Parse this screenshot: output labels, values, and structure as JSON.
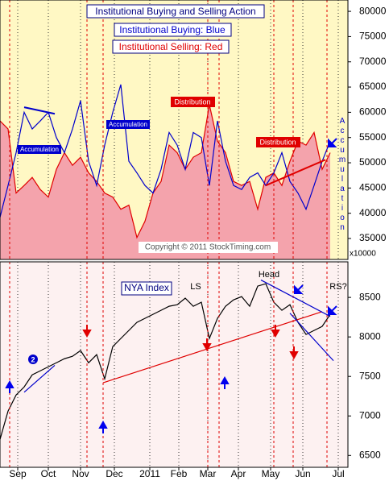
{
  "chart_data": [
    {
      "type": "area-line",
      "title": "Institutional Buying and Selling Action",
      "subtitle": "Institutional Buying: Blue",
      "subtitle2": "Institutional Selling: Red",
      "annotations": [
        "Accumulation",
        "Accumulation",
        "Distribution",
        "Distribution",
        "Accumulation"
      ],
      "copyright": "Copyright © 2011 StockTiming.com",
      "unit_label": "x10000",
      "x": [
        0,
        5,
        10,
        15,
        20,
        25,
        30,
        35,
        40,
        45,
        50,
        55,
        60,
        65,
        70,
        75,
        80,
        85,
        90,
        95,
        100,
        105,
        110,
        115,
        120,
        125,
        130,
        135,
        140,
        145,
        150,
        155,
        160,
        165,
        170,
        175,
        180,
        185,
        190,
        195,
        200,
        205
      ],
      "series": [
        {
          "name": "Institutional Selling",
          "color": "#e00000",
          "fill": "#f4a3ac",
          "values": [
            58300,
            56700,
            44000,
            45500,
            47100,
            44700,
            43200,
            48700,
            52000,
            49500,
            51100,
            48000,
            46300,
            44000,
            43200,
            40800,
            41600,
            35200,
            38400,
            44000,
            46300,
            53500,
            52000,
            48700,
            51100,
            52000,
            61500,
            54300,
            52000,
            46300,
            45500,
            46300,
            40800,
            47100,
            48000,
            45500,
            50300,
            54300,
            53500,
            56000,
            48700,
            52000
          ]
        },
        {
          "name": "Institutional Buying",
          "color": "#0000cc",
          "values": [
            39200,
            45500,
            52000,
            60000,
            56700,
            58300,
            60000,
            55000,
            52000,
            56700,
            62300,
            50300,
            45500,
            53500,
            60000,
            65500,
            50300,
            48000,
            45500,
            44000,
            48700,
            56000,
            53500,
            48700,
            56000,
            55000,
            45500,
            58300,
            50300,
            45500,
            44700,
            47100,
            48000,
            45500,
            48000,
            52000,
            46300,
            44000,
            40800,
            45500,
            50300,
            54300
          ]
        }
      ],
      "trendlines": [
        {
          "color": "#0000cc",
          "x": [
            15,
            34
          ],
          "y": [
            61000,
            59700
          ]
        },
        {
          "color": "#e00000",
          "x": [
            165,
            202
          ],
          "y": [
            45500,
            50600
          ]
        }
      ],
      "xlim": [
        0,
        216
      ],
      "ylim": [
        30850,
        82250
      ],
      "yticks": [
        35000,
        40000,
        45000,
        50000,
        55000,
        60000,
        65000,
        70000,
        75000,
        80000
      ],
      "markers": [
        6,
        54,
        64,
        129,
        136,
        170,
        182,
        203
      ]
    },
    {
      "type": "line",
      "title": "NYA Index",
      "annotations": [
        "LS",
        "Head",
        "RS?",
        "2"
      ],
      "x": [
        0,
        5,
        10,
        15,
        20,
        25,
        30,
        35,
        40,
        45,
        50,
        55,
        60,
        65,
        70,
        75,
        80,
        85,
        90,
        95,
        100,
        105,
        110,
        115,
        120,
        125,
        130,
        135,
        140,
        145,
        150,
        155,
        160,
        165,
        170,
        175,
        180,
        185,
        190,
        195,
        200,
        205
      ],
      "series": [
        {
          "name": "NYA",
          "color": "#000000",
          "values": [
            6704,
            7061,
            7265,
            7367,
            7520,
            7571,
            7622,
            7673,
            7724,
            7755,
            7827,
            7673,
            7776,
            7469,
            7878,
            7980,
            8082,
            8184,
            8235,
            8286,
            8337,
            8388,
            8408,
            8490,
            8388,
            8439,
            7980,
            8235,
            8388,
            8469,
            8510,
            8388,
            8643,
            8673,
            8439,
            8337,
            8408,
            8184,
            8031,
            8082,
            8133,
            8286
          ]
        }
      ],
      "trendlines": [
        {
          "color": "#e00000",
          "x": [
            64,
            200
          ],
          "y": [
            7420,
            8320
          ]
        },
        {
          "color": "#0000cc",
          "x": [
            162,
            205
          ],
          "y": [
            8720,
            8260
          ]
        },
        {
          "color": "#0000cc",
          "x": [
            180,
            207
          ],
          "y": [
            8300,
            7700
          ]
        },
        {
          "color": "#0000cc",
          "x": [
            15,
            34
          ],
          "y": [
            7300,
            7640
          ]
        }
      ],
      "xlim": [
        0,
        216
      ],
      "ylim": [
        6350,
        8950
      ],
      "yticks": [
        6500,
        7000,
        7500,
        8000,
        8500
      ],
      "xticks": [
        {
          "value": 11,
          "label": "Sep"
        },
        {
          "value": 30,
          "label": "Oct"
        },
        {
          "value": 50,
          "label": "Nov"
        },
        {
          "value": 71,
          "label": "Dec"
        },
        {
          "value": 93,
          "label": "2011"
        },
        {
          "value": 111,
          "label": "Feb"
        },
        {
          "value": 129,
          "label": "Mar"
        },
        {
          "value": 148,
          "label": "Apr"
        },
        {
          "value": 168,
          "label": "May"
        },
        {
          "value": 188,
          "label": "Jun"
        },
        {
          "value": 210,
          "label": "Jul"
        }
      ],
      "markers": [
        6,
        54,
        64,
        129,
        136,
        170,
        182,
        203
      ]
    }
  ]
}
